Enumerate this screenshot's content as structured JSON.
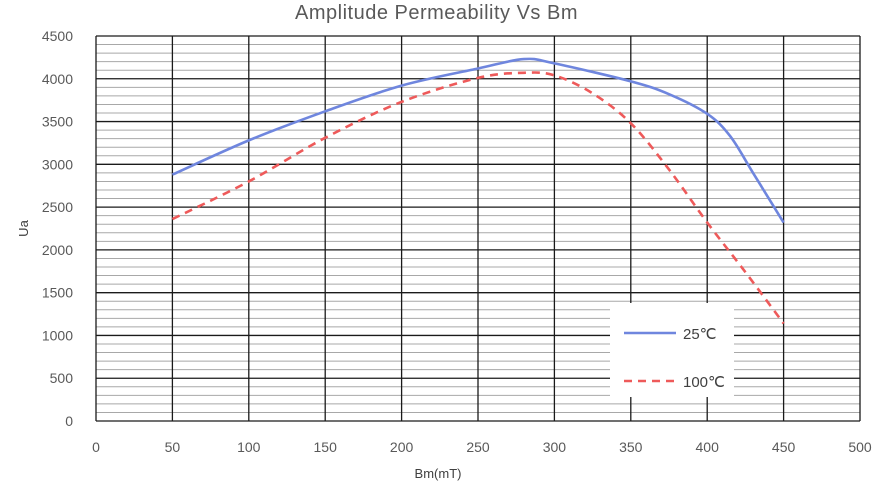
{
  "chart_data": {
    "type": "line",
    "title": "Amplitude Permeability Vs Bm",
    "xlabel": "Bm(mT)",
    "ylabel": "Ua",
    "xlim": [
      0,
      500
    ],
    "ylim": [
      0,
      4500
    ],
    "x_ticks": [
      0,
      50,
      100,
      150,
      200,
      250,
      300,
      350,
      400,
      450,
      500
    ],
    "y_ticks": [
      0,
      500,
      1000,
      1500,
      2000,
      2500,
      3000,
      3500,
      4000,
      4500
    ],
    "major_vertical_grid_step": 50,
    "minor_horizontal_grid_step": 100,
    "major_horizontal_grid_step": 500,
    "legend_position": "bottom-right",
    "series": [
      {
        "name": "25℃",
        "color": "#6f86de",
        "line_style": "solid",
        "x": [
          50,
          100,
          150,
          200,
          250,
          280,
          300,
          350,
          375,
          400,
          415,
          430,
          450
        ],
        "y": [
          2880,
          3280,
          3620,
          3920,
          4120,
          4230,
          4180,
          3970,
          3820,
          3590,
          3330,
          2900,
          2320
        ]
      },
      {
        "name": "100℃",
        "color": "#ee5a5a",
        "line_style": "dashed",
        "x": [
          50,
          100,
          150,
          200,
          250,
          280,
          300,
          325,
          350,
          375,
          400,
          425,
          450
        ],
        "y": [
          2360,
          2800,
          3310,
          3730,
          4010,
          4070,
          4040,
          3830,
          3480,
          2940,
          2320,
          1740,
          1140
        ]
      }
    ]
  }
}
